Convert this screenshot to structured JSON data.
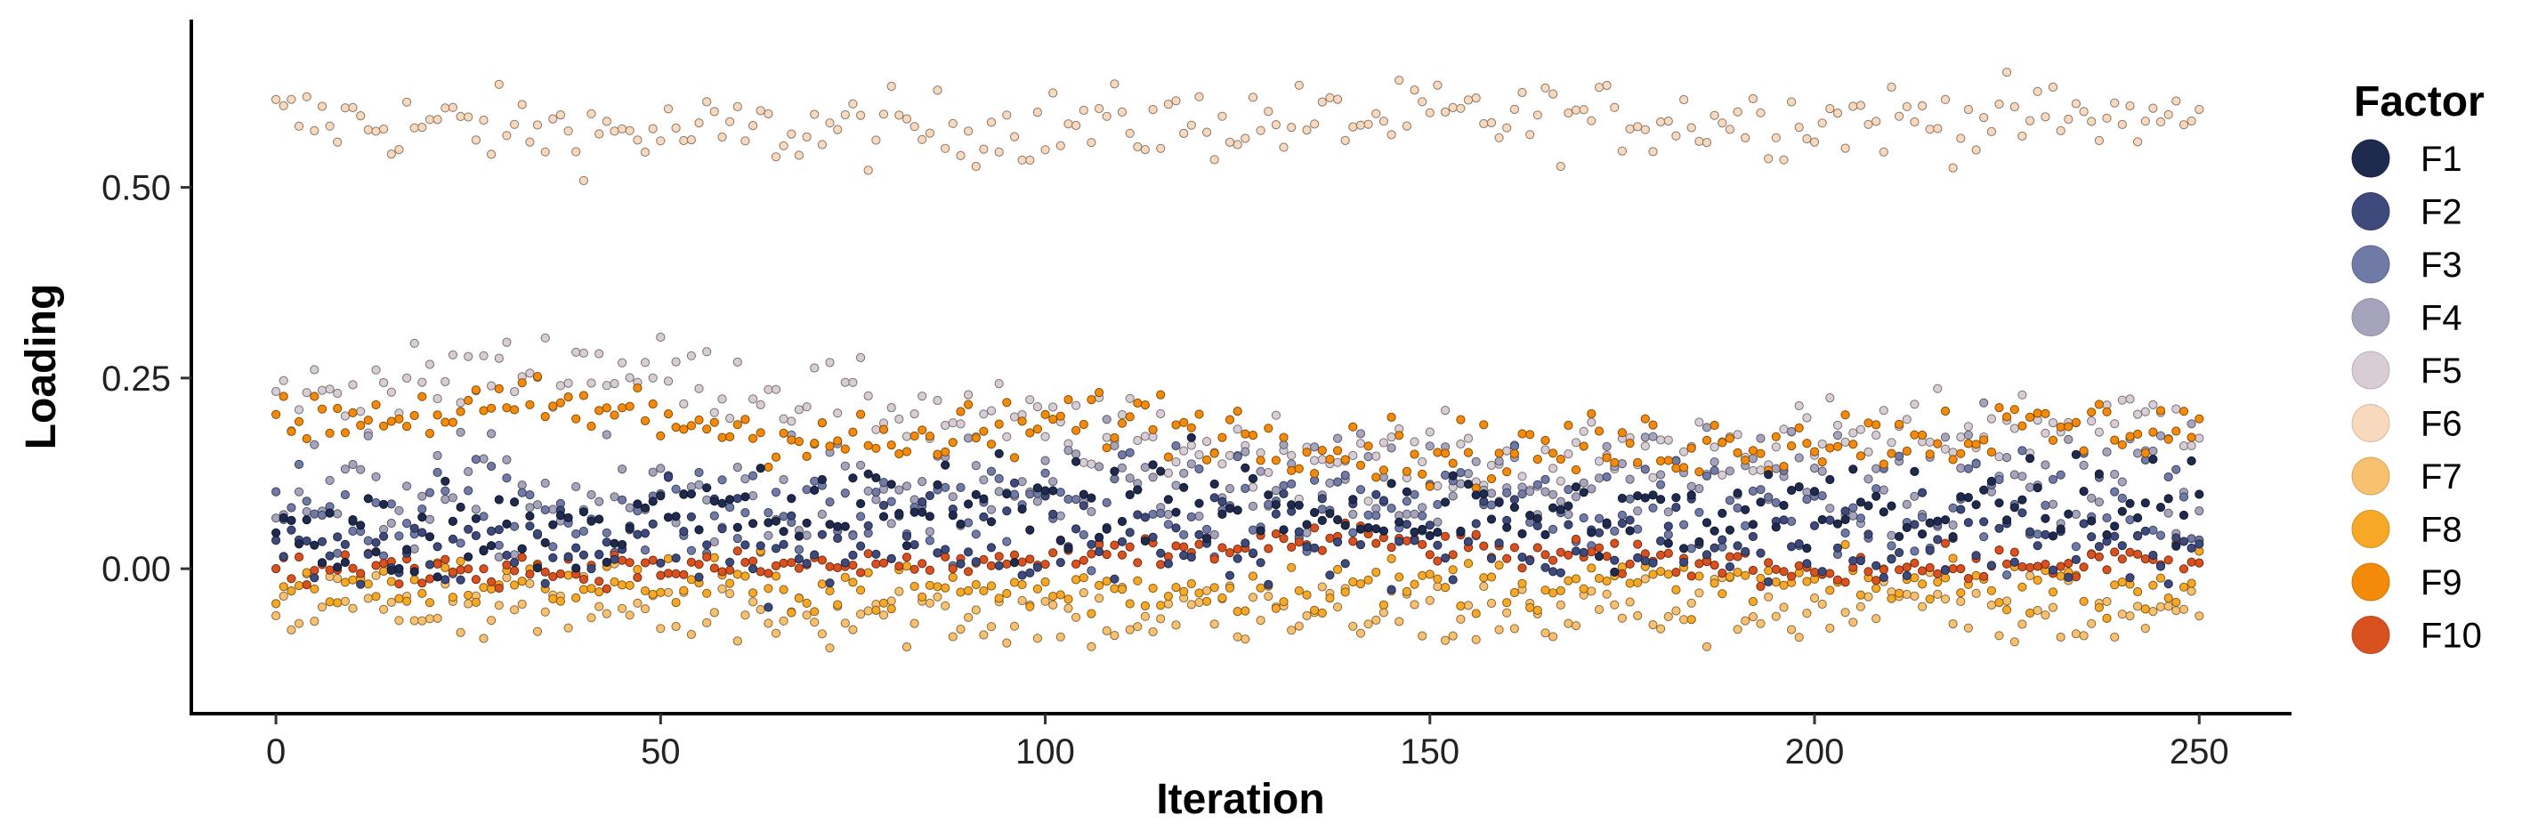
{
  "chart_data": {
    "type": "scatter",
    "title": "",
    "xlabel": "Iteration",
    "ylabel": "Loading",
    "xlim": [
      -11,
      262
    ],
    "ylim": [
      -0.19,
      0.72
    ],
    "x_ticks": [
      0,
      50,
      100,
      150,
      200,
      250
    ],
    "x_tick_labels": [
      "0",
      "50",
      "100",
      "150",
      "200",
      "250"
    ],
    "y_ticks": [
      0.0,
      0.25,
      0.5
    ],
    "y_tick_labels": [
      "0.00",
      "0.25",
      "0.50"
    ],
    "grid": false,
    "legend": {
      "title": "Factor",
      "position": "right"
    },
    "x": "iterations 0 through 250 (one point per factor per iteration)",
    "series": [
      {
        "name": "F1",
        "color": "#1f2a4f",
        "trend": [
          [
            0,
            0.03
          ],
          [
            30,
            0.06
          ],
          [
            60,
            0.07
          ],
          [
            100,
            0.09
          ],
          [
            140,
            0.08
          ],
          [
            180,
            0.06
          ],
          [
            220,
            0.09
          ],
          [
            250,
            0.1
          ]
        ],
        "spread": 0.045
      },
      {
        "name": "F2",
        "color": "#3e4a7c",
        "trend": [
          [
            0,
            0.02
          ],
          [
            50,
            0.03
          ],
          [
            100,
            0.05
          ],
          [
            150,
            0.04
          ],
          [
            200,
            0.03
          ],
          [
            250,
            0.03
          ]
        ],
        "spread": 0.045
      },
      {
        "name": "F3",
        "color": "#6f7aa6",
        "trend": [
          [
            0,
            0.08
          ],
          [
            50,
            0.07
          ],
          [
            100,
            0.08
          ],
          [
            150,
            0.08
          ],
          [
            200,
            0.09
          ],
          [
            250,
            0.07
          ]
        ],
        "spread": 0.05
      },
      {
        "name": "F4",
        "color": "#a6a3bd",
        "trend": [
          [
            0,
            0.1
          ],
          [
            50,
            0.09
          ],
          [
            100,
            0.1
          ],
          [
            150,
            0.1
          ],
          [
            200,
            0.12
          ],
          [
            250,
            0.12
          ]
        ],
        "spread": 0.055
      },
      {
        "name": "F5",
        "color": "#d9cdd5",
        "trend": [
          [
            0,
            0.22
          ],
          [
            40,
            0.27
          ],
          [
            80,
            0.21
          ],
          [
            120,
            0.16
          ],
          [
            160,
            0.14
          ],
          [
            200,
            0.17
          ],
          [
            250,
            0.2
          ]
        ],
        "spread": 0.035
      },
      {
        "name": "F6",
        "color": "#f9d9bd",
        "trend": [
          [
            0,
            0.59
          ],
          [
            50,
            0.57
          ],
          [
            100,
            0.58
          ],
          [
            150,
            0.59
          ],
          [
            200,
            0.59
          ],
          [
            250,
            0.59
          ]
        ],
        "spread": 0.035
      },
      {
        "name": "F7",
        "color": "#f8c170",
        "trend": [
          [
            0,
            -0.04
          ],
          [
            50,
            -0.05
          ],
          [
            100,
            -0.06
          ],
          [
            150,
            -0.06
          ],
          [
            200,
            -0.05
          ],
          [
            250,
            -0.06
          ]
        ],
        "spread": 0.035
      },
      {
        "name": "F8",
        "color": "#f7a826",
        "trend": [
          [
            0,
            -0.02
          ],
          [
            50,
            -0.02
          ],
          [
            100,
            -0.03
          ],
          [
            150,
            -0.02
          ],
          [
            200,
            -0.02
          ],
          [
            250,
            -0.02
          ]
        ],
        "spread": 0.025
      },
      {
        "name": "F9",
        "color": "#f58a0a",
        "trend": [
          [
            0,
            0.2
          ],
          [
            40,
            0.21
          ],
          [
            80,
            0.16
          ],
          [
            110,
            0.2
          ],
          [
            150,
            0.15
          ],
          [
            200,
            0.17
          ],
          [
            250,
            0.19
          ]
        ],
        "spread": 0.03
      },
      {
        "name": "F10",
        "color": "#d9511e",
        "trend": [
          [
            0,
            0.0
          ],
          [
            50,
            0.0
          ],
          [
            100,
            0.01
          ],
          [
            140,
            0.04
          ],
          [
            160,
            0.02
          ],
          [
            200,
            0.0
          ],
          [
            250,
            0.01
          ]
        ],
        "spread": 0.015
      }
    ]
  }
}
